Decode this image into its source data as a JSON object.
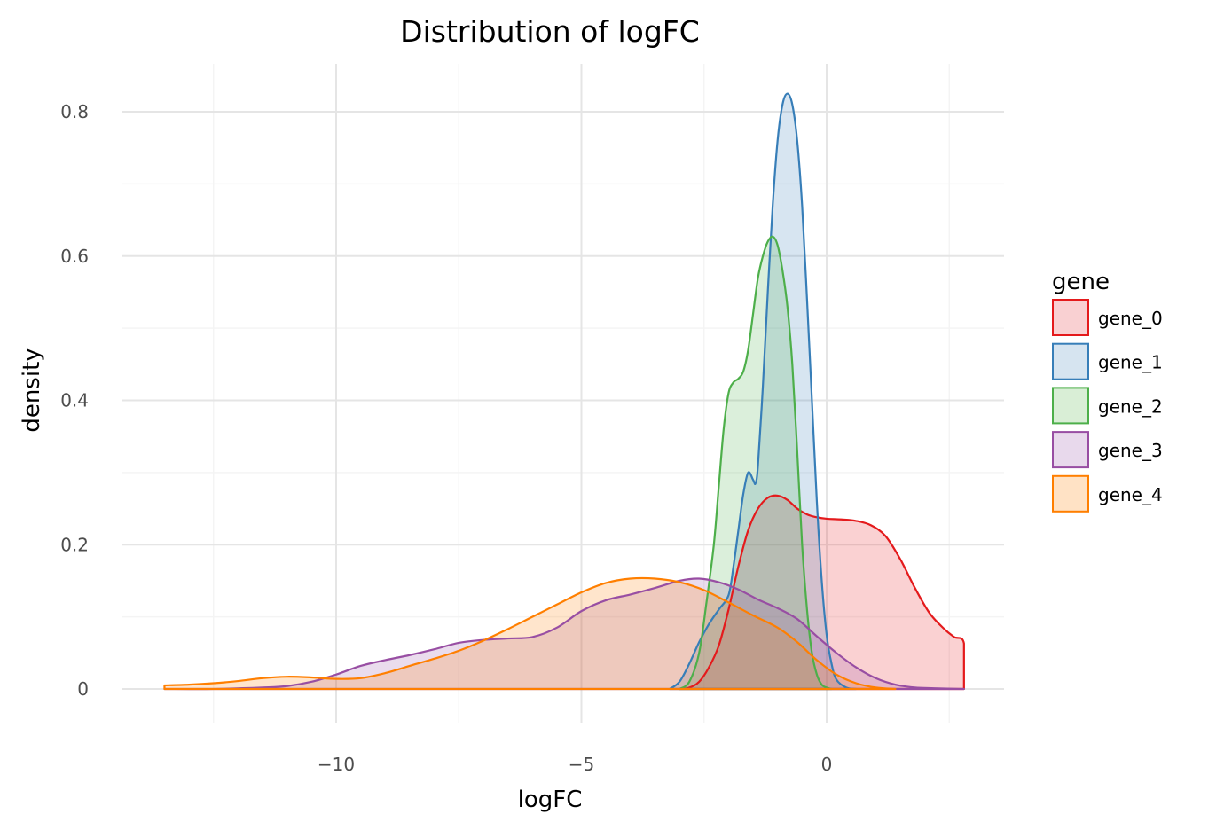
{
  "chart_data": {
    "type": "area",
    "title": "Distribution of logFC",
    "xlabel": "logFC",
    "ylabel": "density",
    "xlim": [
      -14.4,
      3.6
    ],
    "ylim": [
      -0.05,
      0.87
    ],
    "x_ticks": [
      -10,
      -5,
      0
    ],
    "x_tick_labels": [
      "−10",
      "−5",
      "0"
    ],
    "y_ticks": [
      0,
      0.2,
      0.4,
      0.6,
      0.8
    ],
    "y_tick_labels": [
      "0",
      "0.2",
      "0.4",
      "0.6",
      "0.8"
    ],
    "grid": true,
    "legend": {
      "title": "gene",
      "placement": "right"
    },
    "series": [
      {
        "name": "gene_0",
        "color": "#e41a1c",
        "fill": "#f9d0d2",
        "points": [
          [
            -3.0,
            0
          ],
          [
            -2.8,
            0.002
          ],
          [
            -2.6,
            0.01
          ],
          [
            -2.4,
            0.03
          ],
          [
            -2.2,
            0.06
          ],
          [
            -2.0,
            0.11
          ],
          [
            -1.8,
            0.17
          ],
          [
            -1.6,
            0.22
          ],
          [
            -1.4,
            0.25
          ],
          [
            -1.2,
            0.265
          ],
          [
            -1.0,
            0.268
          ],
          [
            -0.8,
            0.262
          ],
          [
            -0.6,
            0.25
          ],
          [
            -0.4,
            0.242
          ],
          [
            -0.2,
            0.238
          ],
          [
            0.0,
            0.236
          ],
          [
            0.3,
            0.235
          ],
          [
            0.6,
            0.233
          ],
          [
            0.9,
            0.227
          ],
          [
            1.2,
            0.212
          ],
          [
            1.5,
            0.18
          ],
          [
            1.8,
            0.14
          ],
          [
            2.1,
            0.105
          ],
          [
            2.4,
            0.083
          ],
          [
            2.6,
            0.072
          ],
          [
            2.8,
            0.063
          ],
          [
            2.8,
            0
          ]
        ]
      },
      {
        "name": "gene_1",
        "color": "#377eb8",
        "fill": "#d6e4f0",
        "points": [
          [
            -3.2,
            0
          ],
          [
            -3.0,
            0.01
          ],
          [
            -2.8,
            0.035
          ],
          [
            -2.6,
            0.065
          ],
          [
            -2.4,
            0.09
          ],
          [
            -2.2,
            0.11
          ],
          [
            -2.0,
            0.13
          ],
          [
            -1.9,
            0.17
          ],
          [
            -1.8,
            0.22
          ],
          [
            -1.7,
            0.27
          ],
          [
            -1.6,
            0.3
          ],
          [
            -1.5,
            0.29
          ],
          [
            -1.45,
            0.285
          ],
          [
            -1.4,
            0.31
          ],
          [
            -1.3,
            0.42
          ],
          [
            -1.2,
            0.55
          ],
          [
            -1.1,
            0.67
          ],
          [
            -1.0,
            0.76
          ],
          [
            -0.9,
            0.81
          ],
          [
            -0.8,
            0.825
          ],
          [
            -0.7,
            0.81
          ],
          [
            -0.6,
            0.76
          ],
          [
            -0.5,
            0.67
          ],
          [
            -0.4,
            0.54
          ],
          [
            -0.3,
            0.4
          ],
          [
            -0.2,
            0.26
          ],
          [
            -0.1,
            0.15
          ],
          [
            0.0,
            0.075
          ],
          [
            0.1,
            0.035
          ],
          [
            0.2,
            0.013
          ],
          [
            0.4,
            0.002
          ],
          [
            0.6,
            0
          ]
        ]
      },
      {
        "name": "gene_2",
        "color": "#4daf4a",
        "fill": "#d9eed6",
        "points": [
          [
            -3.0,
            0
          ],
          [
            -2.8,
            0.01
          ],
          [
            -2.6,
            0.05
          ],
          [
            -2.45,
            0.12
          ],
          [
            -2.3,
            0.2
          ],
          [
            -2.2,
            0.28
          ],
          [
            -2.1,
            0.36
          ],
          [
            -2.0,
            0.41
          ],
          [
            -1.9,
            0.425
          ],
          [
            -1.8,
            0.43
          ],
          [
            -1.7,
            0.44
          ],
          [
            -1.6,
            0.47
          ],
          [
            -1.5,
            0.52
          ],
          [
            -1.4,
            0.57
          ],
          [
            -1.3,
            0.6
          ],
          [
            -1.2,
            0.62
          ],
          [
            -1.1,
            0.627
          ],
          [
            -1.0,
            0.615
          ],
          [
            -0.9,
            0.58
          ],
          [
            -0.8,
            0.53
          ],
          [
            -0.7,
            0.45
          ],
          [
            -0.6,
            0.33
          ],
          [
            -0.5,
            0.2
          ],
          [
            -0.4,
            0.11
          ],
          [
            -0.3,
            0.05
          ],
          [
            -0.2,
            0.02
          ],
          [
            -0.1,
            0.006
          ],
          [
            0.0,
            0.002
          ],
          [
            0.1,
            0
          ]
        ]
      },
      {
        "name": "gene_3",
        "color": "#984ea3",
        "fill": "#e8d9ec",
        "points": [
          [
            -13.5,
            0
          ],
          [
            -12.5,
            0
          ],
          [
            -11.5,
            0.002
          ],
          [
            -11.0,
            0.004
          ],
          [
            -10.5,
            0.01
          ],
          [
            -10.0,
            0.02
          ],
          [
            -9.5,
            0.032
          ],
          [
            -9.0,
            0.04
          ],
          [
            -8.5,
            0.047
          ],
          [
            -8.0,
            0.055
          ],
          [
            -7.5,
            0.064
          ],
          [
            -7.0,
            0.068
          ],
          [
            -6.5,
            0.07
          ],
          [
            -6.0,
            0.072
          ],
          [
            -5.5,
            0.085
          ],
          [
            -5.0,
            0.108
          ],
          [
            -4.5,
            0.123
          ],
          [
            -4.0,
            0.131
          ],
          [
            -3.5,
            0.14
          ],
          [
            -3.0,
            0.15
          ],
          [
            -2.6,
            0.153
          ],
          [
            -2.2,
            0.148
          ],
          [
            -1.8,
            0.138
          ],
          [
            -1.4,
            0.124
          ],
          [
            -1.0,
            0.112
          ],
          [
            -0.6,
            0.097
          ],
          [
            -0.2,
            0.073
          ],
          [
            0.2,
            0.05
          ],
          [
            0.6,
            0.03
          ],
          [
            1.0,
            0.015
          ],
          [
            1.4,
            0.006
          ],
          [
            1.8,
            0.002
          ],
          [
            2.2,
            0.001
          ],
          [
            2.8,
            0
          ]
        ]
      },
      {
        "name": "gene_4",
        "color": "#ff7f00",
        "fill": "#ffe2c5",
        "points": [
          [
            -13.5,
            0.005
          ],
          [
            -13.0,
            0.006
          ],
          [
            -12.5,
            0.008
          ],
          [
            -12.0,
            0.011
          ],
          [
            -11.5,
            0.015
          ],
          [
            -11.0,
            0.017
          ],
          [
            -10.5,
            0.016
          ],
          [
            -10.0,
            0.014
          ],
          [
            -9.5,
            0.015
          ],
          [
            -9.0,
            0.022
          ],
          [
            -8.5,
            0.032
          ],
          [
            -8.0,
            0.042
          ],
          [
            -7.5,
            0.053
          ],
          [
            -7.0,
            0.067
          ],
          [
            -6.5,
            0.083
          ],
          [
            -6.0,
            0.1
          ],
          [
            -5.5,
            0.117
          ],
          [
            -5.0,
            0.134
          ],
          [
            -4.5,
            0.147
          ],
          [
            -4.0,
            0.153
          ],
          [
            -3.5,
            0.153
          ],
          [
            -3.0,
            0.148
          ],
          [
            -2.5,
            0.137
          ],
          [
            -2.0,
            0.12
          ],
          [
            -1.5,
            0.102
          ],
          [
            -1.0,
            0.085
          ],
          [
            -0.6,
            0.065
          ],
          [
            -0.2,
            0.04
          ],
          [
            0.2,
            0.02
          ],
          [
            0.6,
            0.008
          ],
          [
            1.0,
            0.002
          ],
          [
            1.4,
            0
          ]
        ]
      }
    ]
  }
}
